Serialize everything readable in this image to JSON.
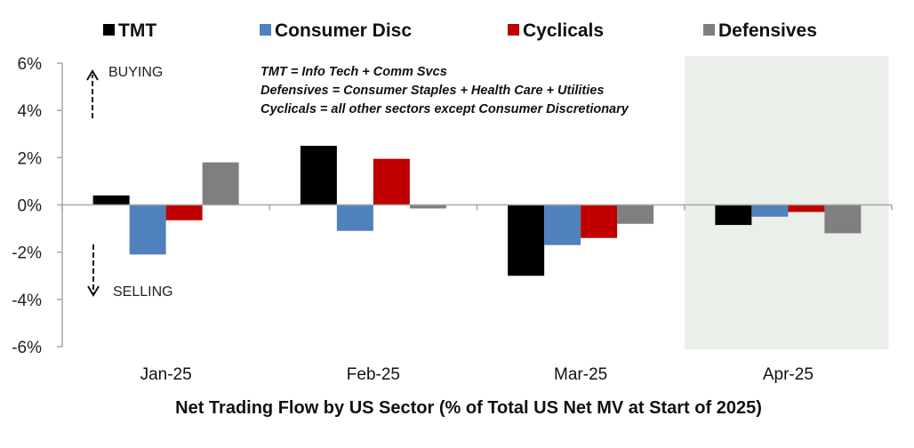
{
  "chart_data": {
    "type": "bar",
    "title": "Net Trading Flow by US Sector (% of Total US Net MV at Start of 2025)",
    "xlabel": "",
    "ylabel": "",
    "categories": [
      "Jan-25",
      "Feb-25",
      "Mar-25",
      "Apr-25"
    ],
    "series": [
      {
        "name": "TMT",
        "color": "#000000",
        "values": [
          0.4,
          2.5,
          -3.0,
          -0.85
        ]
      },
      {
        "name": "Consumer Disc",
        "color": "#4f81bd",
        "values": [
          -2.1,
          -1.1,
          -1.7,
          -0.5
        ]
      },
      {
        "name": "Cyclicals",
        "color": "#c00000",
        "values": [
          -0.65,
          1.95,
          -1.4,
          -0.3
        ]
      },
      {
        "name": "Defensives",
        "color": "#7f7f7f",
        "values": [
          1.8,
          -0.15,
          -0.8,
          -1.2
        ]
      }
    ],
    "ylim": [
      -6,
      6
    ],
    "yticks": [
      6,
      4,
      2,
      0,
      -2,
      -4,
      -6
    ],
    "ytick_labels": [
      "6%",
      "4%",
      "2%",
      "0%",
      "-2%",
      "-4%",
      "-6%"
    ],
    "grid": false,
    "legend_position": "top",
    "highlighted_category": "Apr-25",
    "highlight_color": "#ebefea",
    "annotations": {
      "buying": "BUYING",
      "selling": "SELLING",
      "notes": [
        "TMT = Info Tech + Comm Svcs",
        "Defensives = Consumer Staples + Health Care + Utilities",
        "Cyclicals = all other sectors except Consumer Discretionary"
      ]
    }
  }
}
